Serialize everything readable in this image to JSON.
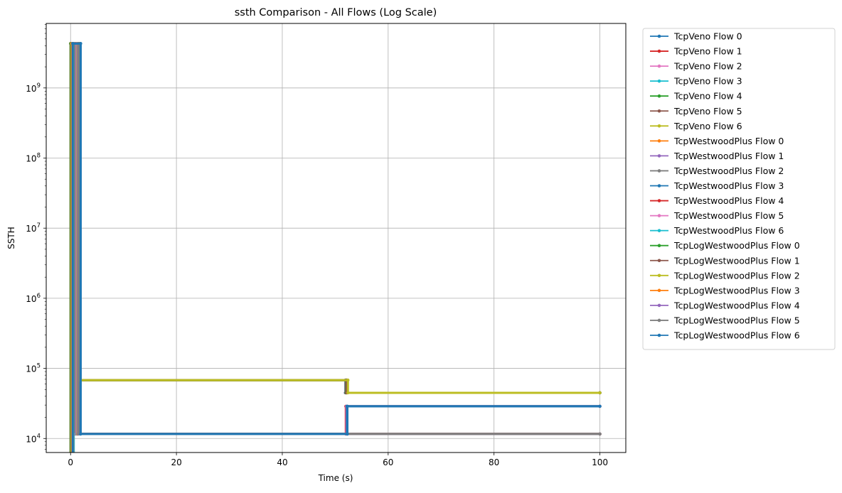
{
  "chart_data": {
    "type": "line",
    "title": "ssth Comparison - All Flows (Log Scale)",
    "xlabel": "Time (s)",
    "ylabel": "SSTH",
    "xlim": [
      -4.6,
      104.9
    ],
    "ylim_log10": [
      3.8,
      9.92
    ],
    "yscale": "log",
    "grid": true,
    "legend_placement": "outside-right",
    "x_ticks": [
      {
        "value": 0,
        "label": "0"
      },
      {
        "value": 20,
        "label": "20"
      },
      {
        "value": 40,
        "label": "40"
      },
      {
        "value": 60,
        "label": "60"
      },
      {
        "value": 80,
        "label": "80"
      },
      {
        "value": 100,
        "label": "100"
      }
    ],
    "y_ticks": [
      {
        "value": 10000,
        "base": "10",
        "exp": "4"
      },
      {
        "value": 100000,
        "base": "10",
        "exp": "5"
      },
      {
        "value": 1000000,
        "base": "10",
        "exp": "6"
      },
      {
        "value": 10000000,
        "base": "10",
        "exp": "7"
      },
      {
        "value": 100000000,
        "base": "10",
        "exp": "8"
      },
      {
        "value": 1000000000,
        "base": "10",
        "exp": "9"
      }
    ],
    "series": [
      {
        "name": "TcpVeno Flow 0",
        "color": "#1f77b4",
        "x": [
          0.05,
          0.05,
          1.9,
          1.9,
          52.3,
          52.3,
          100
        ],
        "y": [
          6000,
          4294967295,
          4294967295,
          11600,
          11600,
          28800,
          28800
        ]
      },
      {
        "name": "TcpVeno Flow 1",
        "color": "#d62728",
        "x": [
          0.05,
          0.05,
          1.2,
          1.2,
          52.0,
          52.0,
          100
        ],
        "y": [
          6000,
          4294967295,
          4294967295,
          11600,
          11600,
          28800,
          28800
        ]
      },
      {
        "name": "TcpVeno Flow 2",
        "color": "#e377c2",
        "x": [
          0.1,
          0.1,
          1.3,
          1.3,
          52.1,
          52.1,
          100
        ],
        "y": [
          6000,
          4294967295,
          4294967295,
          11600,
          11600,
          28800,
          28800
        ]
      },
      {
        "name": "TcpVeno Flow 3",
        "color": "#17becf",
        "x": [
          0.15,
          0.15,
          1.4,
          1.4,
          100
        ],
        "y": [
          6000,
          4294967295,
          4294967295,
          11600,
          11600
        ]
      },
      {
        "name": "TcpVeno Flow 4",
        "color": "#2ca02c",
        "x": [
          0.2,
          0.2,
          1.5,
          1.5,
          52.2,
          52.2,
          100
        ],
        "y": [
          6000,
          4294967295,
          4294967295,
          68000,
          68000,
          44800,
          44800
        ]
      },
      {
        "name": "TcpVeno Flow 5",
        "color": "#8c564b",
        "x": [
          0.25,
          0.25,
          1.6,
          1.6,
          52.1,
          52.1,
          100
        ],
        "y": [
          6000,
          4294967295,
          4294967295,
          68000,
          68000,
          44800,
          44800
        ]
      },
      {
        "name": "TcpVeno Flow 6",
        "color": "#bcbd22",
        "x": [
          0.3,
          0.3,
          1.7,
          1.7,
          52.3,
          52.3,
          100
        ],
        "y": [
          6000,
          4294967295,
          4294967295,
          68000,
          68000,
          44800,
          44800
        ]
      },
      {
        "name": "TcpWestwoodPlus Flow 0",
        "color": "#ff7f0e",
        "x": [
          0.0,
          0.0,
          0.7,
          0.7,
          100
        ],
        "y": [
          6000,
          4294967295,
          4294967295,
          11600,
          11600
        ]
      },
      {
        "name": "TcpWestwoodPlus Flow 1",
        "color": "#9467bd",
        "x": [
          0.1,
          0.1,
          0.8,
          0.8,
          51.9,
          51.9,
          100
        ],
        "y": [
          6000,
          4294967295,
          4294967295,
          68000,
          68000,
          44800,
          44800
        ]
      },
      {
        "name": "TcpWestwoodPlus Flow 2",
        "color": "#7f7f7f",
        "x": [
          0.2,
          0.2,
          0.9,
          0.9,
          100
        ],
        "y": [
          6000,
          4294967295,
          4294967295,
          11600,
          11600
        ]
      },
      {
        "name": "TcpWestwoodPlus Flow 3",
        "color": "#1f77b4",
        "x": [
          0.3,
          0.3,
          1.8,
          1.8,
          52.2,
          52.2,
          100
        ],
        "y": [
          6000,
          4294967295,
          4294967295,
          11600,
          11600,
          28800,
          28800
        ]
      },
      {
        "name": "TcpWestwoodPlus Flow 4",
        "color": "#d62728",
        "x": [
          0.4,
          0.4,
          1.0,
          1.0,
          100
        ],
        "y": [
          6000,
          4294967295,
          4294967295,
          11600,
          11600
        ]
      },
      {
        "name": "TcpWestwoodPlus Flow 5",
        "color": "#e377c2",
        "x": [
          0.5,
          0.5,
          1.1,
          1.1,
          100
        ],
        "y": [
          6000,
          4294967295,
          4294967295,
          11600,
          11600
        ]
      },
      {
        "name": "TcpWestwoodPlus Flow 6",
        "color": "#17becf",
        "x": [
          0.6,
          0.6,
          1.2,
          1.2,
          100
        ],
        "y": [
          6000,
          4294967295,
          4294967295,
          11600,
          11600
        ]
      },
      {
        "name": "TcpLogWestwoodPlus Flow 0",
        "color": "#2ca02c",
        "x": [
          0.0,
          0.0,
          1.5,
          1.5,
          52.0,
          52.0,
          100
        ],
        "y": [
          6000,
          4294967295,
          4294967295,
          68000,
          68000,
          44800,
          44800
        ]
      },
      {
        "name": "TcpLogWestwoodPlus Flow 1",
        "color": "#8c564b",
        "x": [
          0.1,
          0.1,
          1.6,
          1.6,
          52.1,
          52.1,
          100
        ],
        "y": [
          6000,
          4294967295,
          4294967295,
          68000,
          68000,
          44800,
          44800
        ]
      },
      {
        "name": "TcpLogWestwoodPlus Flow 2",
        "color": "#bcbd22",
        "x": [
          0.2,
          0.2,
          1.7,
          1.7,
          52.4,
          52.4,
          100
        ],
        "y": [
          6000,
          4294967295,
          4294967295,
          68000,
          68000,
          44800,
          44800
        ]
      },
      {
        "name": "TcpLogWestwoodPlus Flow 3",
        "color": "#ff7f0e",
        "x": [
          0.3,
          0.3,
          1.3,
          1.3,
          100
        ],
        "y": [
          6000,
          4294967295,
          4294967295,
          11600,
          11600
        ]
      },
      {
        "name": "TcpLogWestwoodPlus Flow 4",
        "color": "#9467bd",
        "x": [
          0.4,
          0.4,
          1.4,
          1.4,
          100
        ],
        "y": [
          6000,
          4294967295,
          4294967295,
          11600,
          11600
        ]
      },
      {
        "name": "TcpLogWestwoodPlus Flow 5",
        "color": "#7f7f7f",
        "x": [
          0.5,
          0.5,
          1.5,
          1.5,
          100
        ],
        "y": [
          6000,
          4294967295,
          4294967295,
          11600,
          11600
        ]
      },
      {
        "name": "TcpLogWestwoodPlus Flow 6",
        "color": "#1f77b4",
        "x": [
          0.4,
          0.4,
          1.9,
          1.9,
          52.3,
          52.3,
          100
        ],
        "y": [
          6000,
          4294967295,
          4294967295,
          11600,
          11600,
          28800,
          28800
        ]
      }
    ]
  }
}
